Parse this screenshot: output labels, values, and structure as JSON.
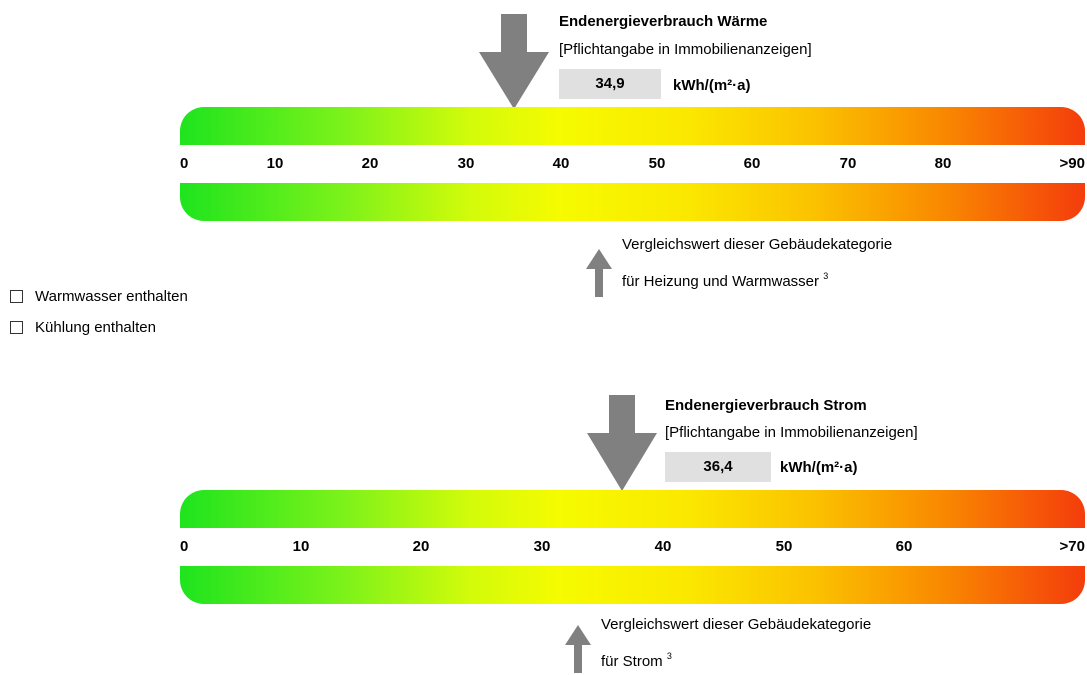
{
  "heat": {
    "title": "Endenergieverbrauch Wärme",
    "subtitle": "[Pflichtangabe in Immobilienanzeigen]",
    "value": "34,9",
    "unit": "kWh/(m²·a)",
    "scale": [
      "0",
      "10",
      "20",
      "30",
      "40",
      "50",
      "60",
      "70",
      "80",
      ">90"
    ],
    "comparison_line1": "Vergleichswert dieser Gebäudekategorie",
    "comparison_line2": "für Heizung und Warmwasser",
    "footnote": "3"
  },
  "checkboxes": [
    {
      "label": "Warmwasser enthalten",
      "checked": false
    },
    {
      "label": "Kühlung enthalten",
      "checked": false
    }
  ],
  "electricity": {
    "title": "Endenergieverbrauch Strom",
    "subtitle": "[Pflichtangabe in Immobilienanzeigen]",
    "value": "36,4",
    "unit": "kWh/(m²·a)",
    "scale": [
      "0",
      "10",
      "20",
      "30",
      "40",
      "50",
      "60",
      ">70"
    ],
    "comparison_line1": "Vergleichswert dieser Gebäudekategorie",
    "comparison_line2": "für Strom",
    "footnote": "3"
  },
  "colors": {
    "arrow": "#808080",
    "valuebox": "#e0e0e0",
    "scale_low": "#1ee41e",
    "scale_high": "#f43c0c"
  }
}
